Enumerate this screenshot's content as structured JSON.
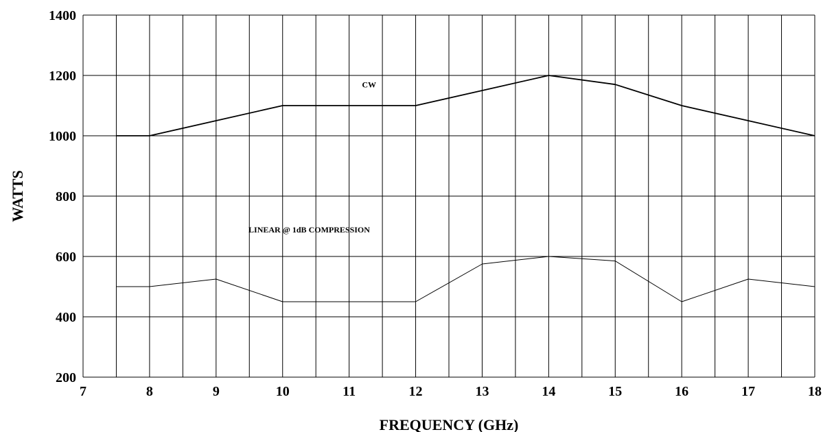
{
  "chart_data": {
    "type": "line",
    "xlabel": "FREQUENCY (GHz)",
    "ylabel": "WATTS",
    "xlim": [
      7,
      18
    ],
    "ylim": [
      200,
      1400
    ],
    "x_ticks": [
      7,
      8,
      9,
      10,
      11,
      12,
      13,
      14,
      15,
      16,
      17,
      18
    ],
    "y_ticks": [
      200,
      400,
      600,
      800,
      1000,
      1200,
      1400
    ],
    "x_grid": [
      7.5,
      8,
      8.5,
      9,
      9.5,
      10,
      10.5,
      11,
      11.5,
      12,
      12.5,
      13,
      13.5,
      14,
      14.5,
      15,
      15.5,
      16,
      16.5,
      17,
      17.5,
      18
    ],
    "y_grid": [
      400,
      600,
      800,
      1000,
      1200,
      1400
    ],
    "grid": true,
    "series": [
      {
        "name": "CW",
        "x": [
          7.5,
          8,
          9,
          10,
          11,
          12,
          13,
          14,
          15,
          16,
          17,
          18
        ],
        "values": [
          1000,
          1000,
          1050,
          1100,
          1100,
          1100,
          1150,
          1200,
          1170,
          1100,
          1050,
          1000
        ],
        "label_at": [
          11.3,
          1160
        ],
        "color": "#000000"
      },
      {
        "name": "LINEAR @ 1dB COMPRESSION",
        "x": [
          7.5,
          8,
          9,
          10,
          11,
          12,
          13,
          14,
          15,
          16,
          17,
          18
        ],
        "values": [
          500,
          500,
          525,
          450,
          450,
          450,
          575,
          600,
          585,
          450,
          525,
          500
        ],
        "label_at": [
          10.4,
          680
        ],
        "color": "#000000"
      }
    ]
  }
}
